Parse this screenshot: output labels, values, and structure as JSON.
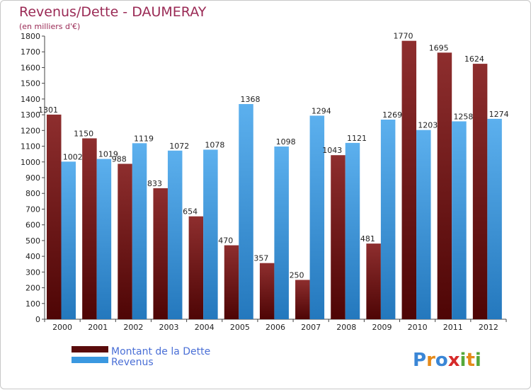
{
  "chart_data": {
    "type": "bar",
    "title": "Revenus/Dette - DAUMERAY",
    "subtitle": "(en milliers d'€)",
    "categories": [
      "2000",
      "2001",
      "2002",
      "2003",
      "2004",
      "2005",
      "2006",
      "2007",
      "2008",
      "2009",
      "2010",
      "2011",
      "2012"
    ],
    "series": [
      {
        "name": "Montant de la Dette",
        "color": "#7a1a1a",
        "values": [
          1301,
          1150,
          988,
          833,
          654,
          470,
          357,
          250,
          1043,
          481,
          1770,
          1695,
          1624
        ],
        "labels": [
          "1301",
          "1150",
          "988",
          "833",
          "654",
          "470",
          "357",
          "250",
          "1043",
          "481",
          "1770",
          "1695",
          "1624"
        ]
      },
      {
        "name": "Revenus",
        "color": "#3a98e0",
        "values": [
          1002,
          1019,
          1119,
          1072,
          1078,
          1368,
          1098,
          1294,
          1121,
          1269,
          1203,
          1258,
          1274
        ],
        "labels": [
          "1002",
          "1019",
          "1119",
          "1072",
          "1078",
          "1368",
          "1098",
          "1294",
          "1121",
          "1269",
          "1203",
          "1258",
          "1274"
        ]
      }
    ],
    "ylim": [
      0,
      1800
    ],
    "yticks": [
      "0",
      "100",
      "200",
      "300",
      "400",
      "500",
      "600",
      "700",
      "800",
      "900",
      "1000",
      "1100",
      "1200",
      "1300",
      "1400",
      "1500",
      "1600",
      "1700",
      "1800"
    ],
    "grid": false,
    "legend_position": "bottom-left"
  },
  "watermark": "Proxiti"
}
